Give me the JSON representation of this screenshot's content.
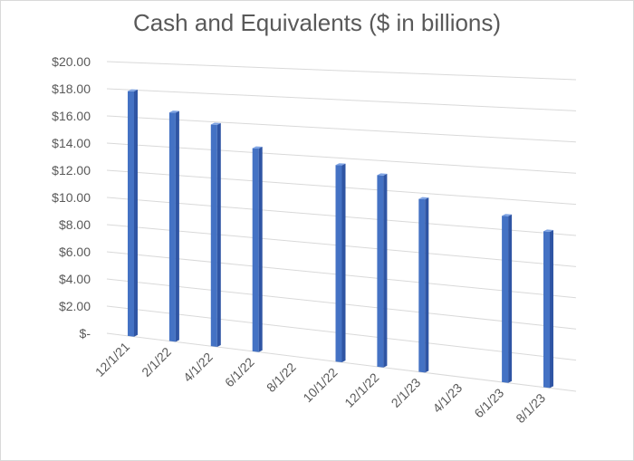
{
  "chart_data": {
    "type": "bar",
    "title": "Cash and Equivalents ($ in billions)",
    "categories": [
      "12/1/21",
      "2/1/22",
      "4/1/22",
      "6/1/22",
      "8/1/22",
      "10/1/22",
      "12/1/22",
      "2/1/23",
      "4/1/23",
      "6/1/23",
      "8/1/23"
    ],
    "values": [
      17.9,
      16.5,
      15.8,
      14.3,
      null,
      13.5,
      13.0,
      11.6,
      null,
      10.9,
      10.1
    ],
    "y_tick_labels": [
      "$-",
      "$2.00",
      "$4.00",
      "$6.00",
      "$8.00",
      "$10.00",
      "$12.00",
      "$14.00",
      "$16.00",
      "$18.00",
      "$20.00"
    ],
    "ylim": [
      0,
      20
    ],
    "grid": true,
    "bar_color": "#4472c4"
  }
}
